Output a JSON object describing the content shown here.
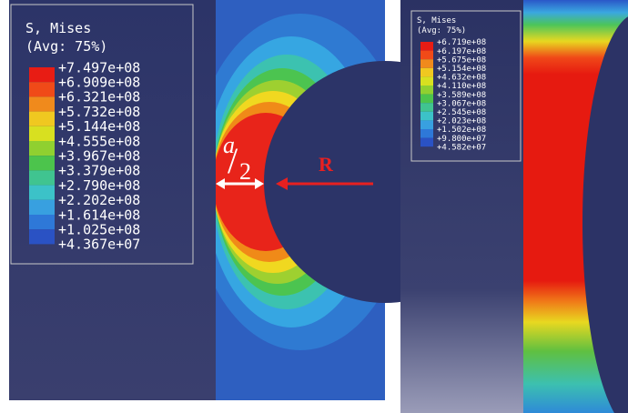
{
  "left_panel": {
    "legend": {
      "title": "S, Mises",
      "subtitle": "(Avg: 75%)",
      "labels": [
        "+7.497e+08",
        "+6.909e+08",
        "+6.321e+08",
        "+5.732e+08",
        "+5.144e+08",
        "+4.555e+08",
        "+3.967e+08",
        "+3.379e+08",
        "+2.790e+08",
        "+2.202e+08",
        "+1.614e+08",
        "+1.025e+08",
        "+4.367e+07"
      ]
    },
    "annotations": {
      "a": "a",
      "slash": "/",
      "two": "2",
      "R": "R"
    }
  },
  "right_panel": {
    "legend": {
      "title": "S, Mises",
      "subtitle": "(Avg: 75%)",
      "labels": [
        "+6.719e+08",
        "+6.197e+08",
        "+5.675e+08",
        "+5.154e+08",
        "+4.632e+08",
        "+4.110e+08",
        "+3.589e+08",
        "+3.067e+08",
        "+2.545e+08",
        "+2.023e+08",
        "+1.502e+08",
        "+9.800e+07",
        "+4.582e+07"
      ]
    }
  }
}
